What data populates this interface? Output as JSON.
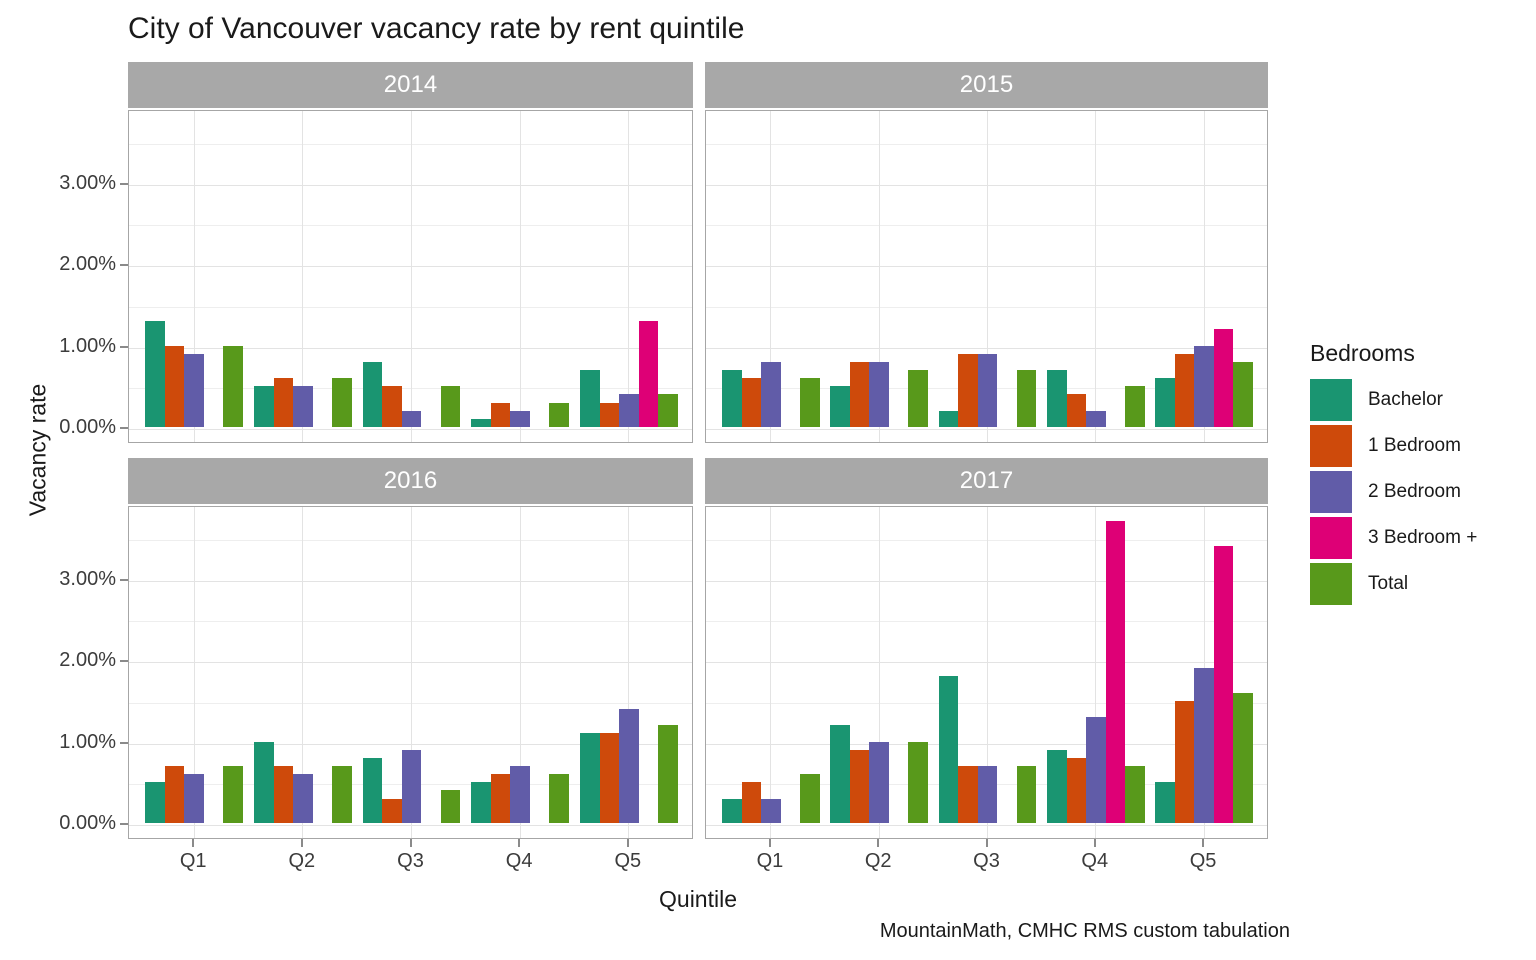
{
  "chart_data": {
    "type": "bar",
    "title": "City of Vancouver vacancy rate by rent quintile",
    "xlabel": "Quintile",
    "ylabel": "Vacancy rate",
    "caption": "MountainMath, CMHC RMS custom tabulation",
    "legend_title": "Bedrooms",
    "legend_position": "right",
    "grid": true,
    "unit": "percent",
    "categories": [
      "Q1",
      "Q2",
      "Q3",
      "Q4",
      "Q5"
    ],
    "y_tick_labels": [
      "0.00%",
      "1.00%",
      "2.00%",
      "3.00%"
    ],
    "y_major_breaks": [
      0,
      1,
      2,
      3
    ],
    "y_minor_breaks": [
      0.5,
      1.5,
      2.5,
      3.5
    ],
    "ylim": [
      0,
      3.9
    ],
    "series": [
      {
        "name": "Bachelor",
        "color": "#1a9571"
      },
      {
        "name": "1 Bedroom",
        "color": "#ce4a0b"
      },
      {
        "name": "2 Bedroom",
        "color": "#615ca8"
      },
      {
        "name": "3 Bedroom +",
        "color": "#de0076"
      },
      {
        "name": "Total",
        "color": "#58991b"
      }
    ],
    "facets": [
      {
        "label": "2014",
        "series": [
          {
            "name": "Bachelor",
            "values": [
              1.3,
              0.5,
              0.8,
              0.1,
              0.7
            ]
          },
          {
            "name": "1 Bedroom",
            "values": [
              1.0,
              0.6,
              0.5,
              0.3,
              0.3
            ]
          },
          {
            "name": "2 Bedroom",
            "values": [
              0.9,
              0.5,
              0.2,
              0.2,
              0.4
            ]
          },
          {
            "name": "3 Bedroom +",
            "values": [
              null,
              null,
              null,
              null,
              1.3
            ]
          },
          {
            "name": "Total",
            "values": [
              1.0,
              0.6,
              0.5,
              0.3,
              0.4
            ]
          }
        ]
      },
      {
        "label": "2015",
        "series": [
          {
            "name": "Bachelor",
            "values": [
              0.7,
              0.5,
              0.2,
              0.7,
              0.6
            ]
          },
          {
            "name": "1 Bedroom",
            "values": [
              0.6,
              0.8,
              0.9,
              0.4,
              0.9
            ]
          },
          {
            "name": "2 Bedroom",
            "values": [
              0.8,
              0.8,
              0.9,
              0.2,
              1.0
            ]
          },
          {
            "name": "3 Bedroom +",
            "values": [
              null,
              null,
              null,
              null,
              1.2
            ]
          },
          {
            "name": "Total",
            "values": [
              0.6,
              0.7,
              0.7,
              0.5,
              0.8
            ]
          }
        ]
      },
      {
        "label": "2016",
        "series": [
          {
            "name": "Bachelor",
            "values": [
              0.5,
              1.0,
              0.8,
              0.5,
              1.1
            ]
          },
          {
            "name": "1 Bedroom",
            "values": [
              0.7,
              0.7,
              0.3,
              0.6,
              1.1
            ]
          },
          {
            "name": "2 Bedroom",
            "values": [
              0.6,
              0.6,
              0.9,
              0.7,
              1.4
            ]
          },
          {
            "name": "3 Bedroom +",
            "values": [
              null,
              null,
              null,
              null,
              null
            ]
          },
          {
            "name": "Total",
            "values": [
              0.7,
              0.7,
              0.4,
              0.6,
              1.2
            ]
          }
        ]
      },
      {
        "label": "2017",
        "series": [
          {
            "name": "Bachelor",
            "values": [
              0.3,
              1.2,
              1.8,
              0.9,
              0.5
            ]
          },
          {
            "name": "1 Bedroom",
            "values": [
              0.5,
              0.9,
              0.7,
              0.8,
              1.5
            ]
          },
          {
            "name": "2 Bedroom",
            "values": [
              0.3,
              1.0,
              0.7,
              1.3,
              1.9
            ]
          },
          {
            "name": "3 Bedroom +",
            "values": [
              null,
              null,
              null,
              3.7,
              3.4
            ]
          },
          {
            "name": "Total",
            "values": [
              0.6,
              1.0,
              0.7,
              0.7,
              1.6
            ]
          }
        ]
      }
    ],
    "theme_colors": {
      "strip_bg": "#a8a8a8",
      "strip_text": "#ffffff",
      "panel_border": "#a6a6a6",
      "grid_major": "#e3e3e3",
      "grid_minor": "#eeeeee",
      "tick": "#8a8a8a",
      "axis_text": "#3c3c3c",
      "text": "#1a1a1a",
      "background": "#ffffff"
    }
  }
}
